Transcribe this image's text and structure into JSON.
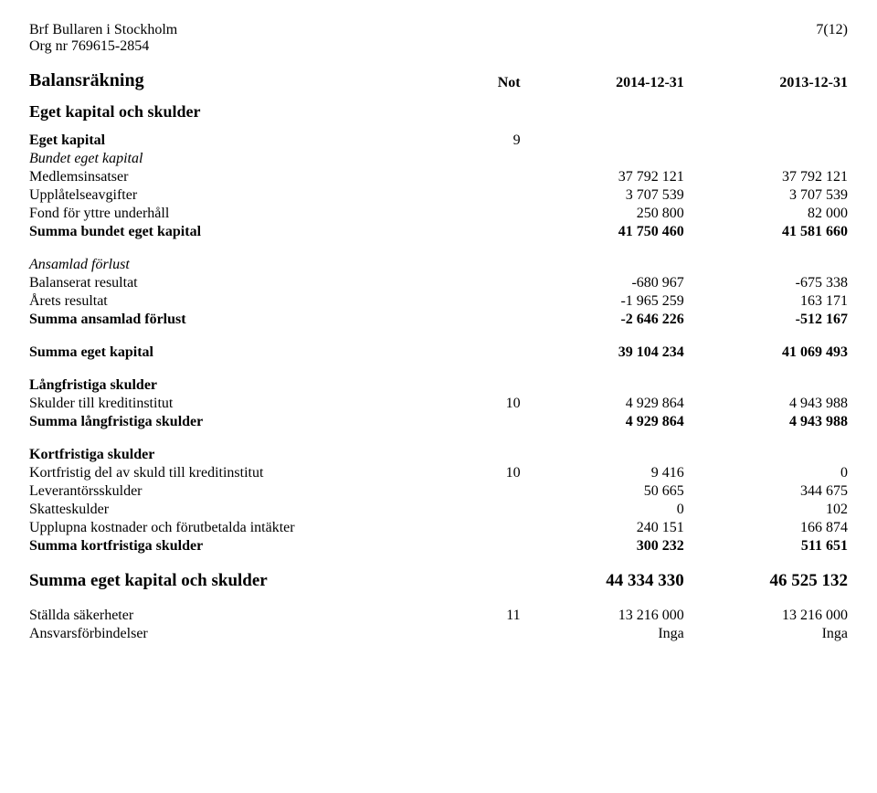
{
  "header": {
    "org_name": "Brf Bullaren i Stockholm",
    "org_nr_label": "Org nr 769615-2854",
    "page_no": "7(12)"
  },
  "title": "Balansräkning",
  "col_headers": {
    "note": "Not",
    "c1": "2014-12-31",
    "c2": "2013-12-31"
  },
  "s1": {
    "heading": "Eget kapital och skulder",
    "eget_kapital_label": "Eget kapital",
    "eget_kapital_note": "9",
    "bundet_label": "Bundet eget kapital",
    "r1": {
      "label": "Medlemsinsatser",
      "v1": "37 792 121",
      "v2": "37 792 121"
    },
    "r2": {
      "label": "Upplåtelseavgifter",
      "v1": "3 707 539",
      "v2": "3 707 539"
    },
    "r3": {
      "label": "Fond för yttre underhåll",
      "v1": "250 800",
      "v2": "82 000"
    },
    "sum_bundet": {
      "label": "Summa bundet eget kapital",
      "v1": "41 750 460",
      "v2": "41 581 660"
    },
    "ansamlad_label": "Ansamlad förlust",
    "r4": {
      "label": "Balanserat resultat",
      "v1": "-680 967",
      "v2": "-675 338"
    },
    "r5": {
      "label": "Årets resultat",
      "v1": "-1 965 259",
      "v2": "163 171"
    },
    "sum_ansamlad": {
      "label": "Summa ansamlad förlust",
      "v1": "-2 646 226",
      "v2": "-512 167"
    },
    "sum_eget": {
      "label": "Summa eget kapital",
      "v1": "39 104 234",
      "v2": "41 069 493"
    }
  },
  "s2": {
    "heading": "Långfristiga skulder",
    "r1": {
      "label": "Skulder till kreditinstitut",
      "note": "10",
      "v1": "4 929 864",
      "v2": "4 943 988"
    },
    "sum": {
      "label": "Summa långfristiga skulder",
      "v1": "4 929 864",
      "v2": "4 943 988"
    }
  },
  "s3": {
    "heading": "Kortfristiga skulder",
    "r1": {
      "label": "Kortfristig del av skuld till kreditinstitut",
      "note": "10",
      "v1": "9 416",
      "v2": "0"
    },
    "r2": {
      "label": "Leverantörsskulder",
      "v1": "50 665",
      "v2": "344 675"
    },
    "r3": {
      "label": "Skatteskulder",
      "v1": "0",
      "v2": "102"
    },
    "r4": {
      "label": "Upplupna kostnader och förutbetalda intäkter",
      "v1": "240 151",
      "v2": "166 874"
    },
    "sum": {
      "label": "Summa kortfristiga skulder",
      "v1": "300 232",
      "v2": "511 651"
    }
  },
  "grand": {
    "label": "Summa eget kapital och skulder",
    "v1": "44 334 330",
    "v2": "46 525 132"
  },
  "footer": {
    "r1": {
      "label": "Ställda säkerheter",
      "note": "11",
      "v1": "13 216 000",
      "v2": "13 216 000"
    },
    "r2": {
      "label": "Ansvarsförbindelser",
      "v1": "Inga",
      "v2": "Inga"
    }
  }
}
